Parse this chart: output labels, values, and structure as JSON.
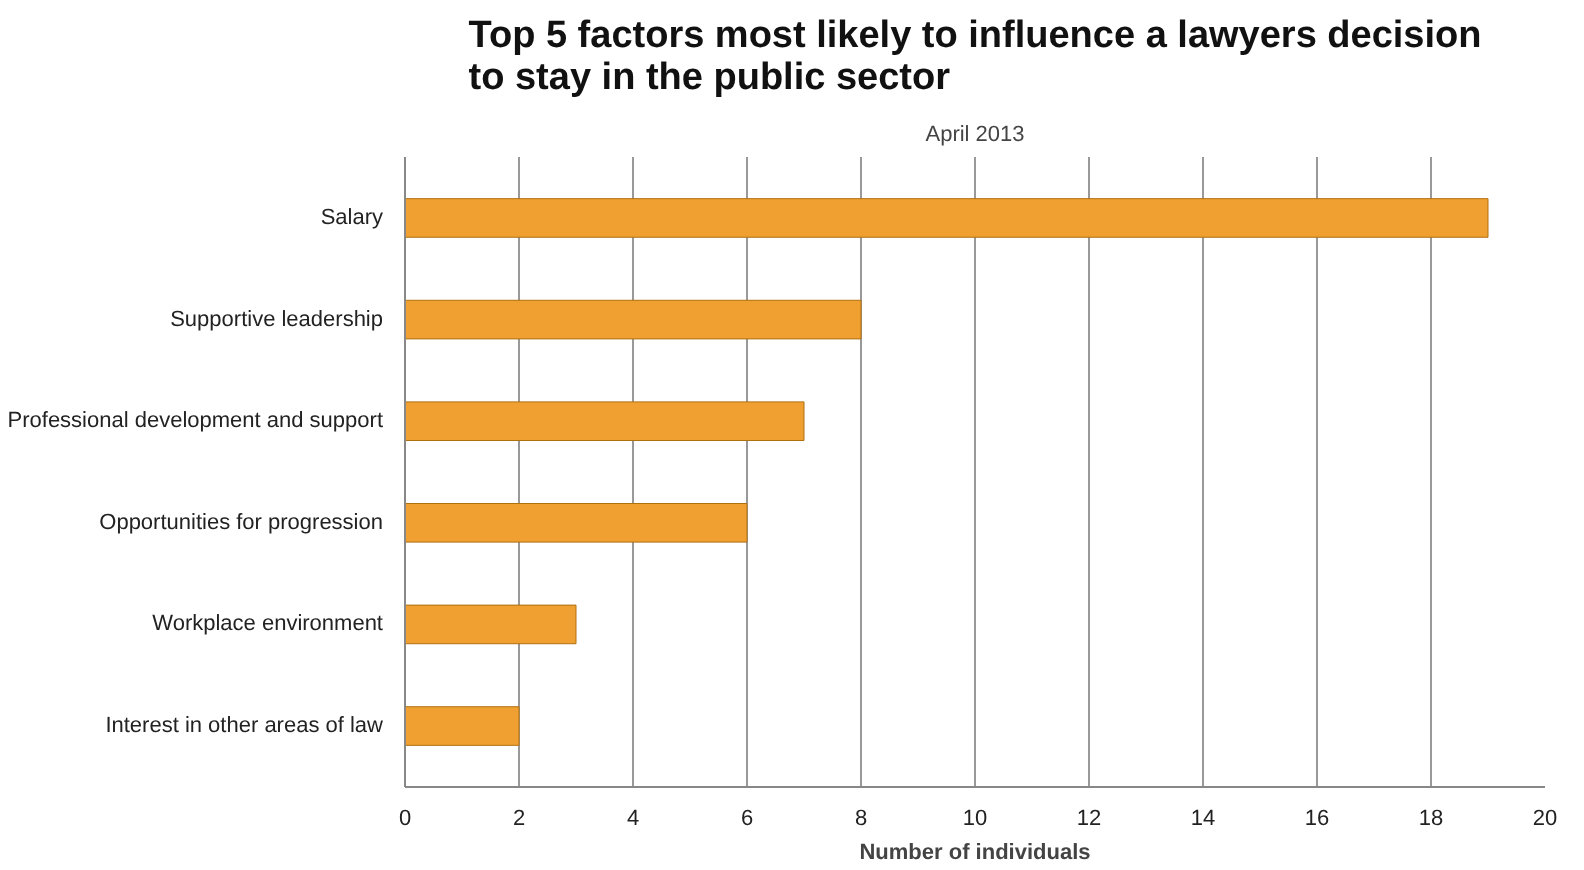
{
  "chart_data": {
    "type": "bar",
    "orientation": "horizontal",
    "title": "Top 5 factors most likely to influence a lawyers decision to stay in the public sector",
    "subtitle": "April 2013",
    "xlabel": "Number of individuals",
    "categories": [
      "Salary",
      "Supportive leadership",
      "Professional development and support",
      "Opportunities for progression",
      "Workplace environment",
      "Interest in other areas of law"
    ],
    "values": [
      19,
      8,
      7,
      6,
      3,
      2
    ],
    "color": "#f0a030",
    "xlim": [
      0,
      20
    ],
    "xticks": [
      0,
      2,
      4,
      6,
      8,
      10,
      12,
      14,
      16,
      18,
      20
    ],
    "grid": "x"
  }
}
